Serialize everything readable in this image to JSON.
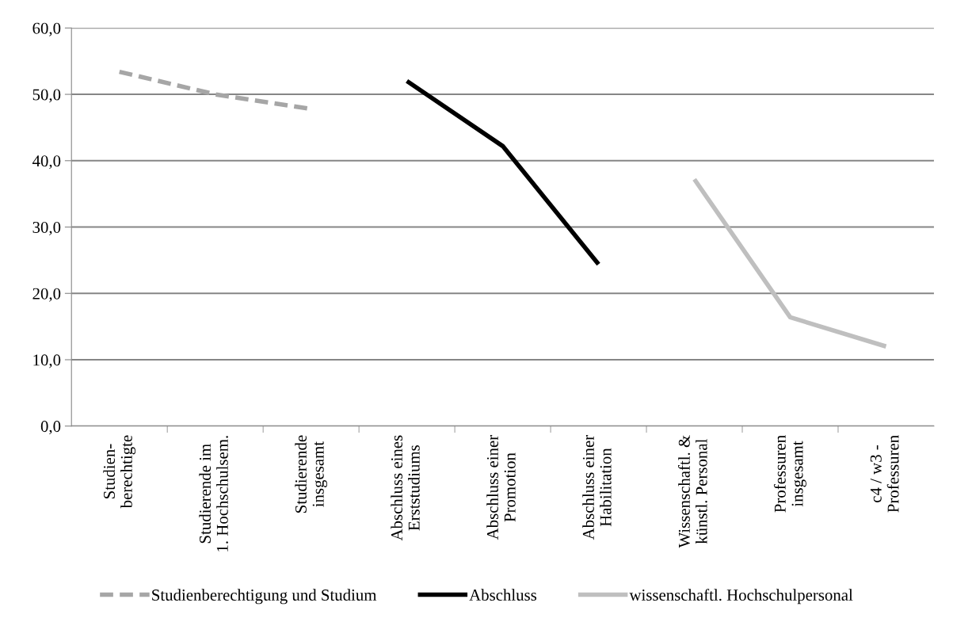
{
  "chart_data": {
    "type": "line",
    "categories": [
      "Studien-\nberechtigte",
      "Studierende im\n1. Hochschulsem.",
      "Studierende\ninsgesamt",
      "Abschluss eines\nErststudiums",
      "Abschluss einer\nPromotion",
      "Abschluss einer\nHabilitation",
      "Wissenschaftl. &\nkünstl. Personal",
      "Professuren\ninsgesamt",
      "c4 / w3 -\nProfessuren"
    ],
    "series": [
      {
        "name": "Studienberechtigung und Studium",
        "color": "#a6a6a6",
        "line_style": "dashed",
        "values": [
          53.4,
          50.0,
          47.8,
          null,
          null,
          null,
          null,
          null,
          null
        ]
      },
      {
        "name": "Abschluss",
        "color": "#000000",
        "line_style": "solid",
        "values": [
          null,
          null,
          null,
          52.0,
          42.2,
          24.4,
          null,
          null,
          null
        ]
      },
      {
        "name": "wissenschaftl. Hochschulpersonal",
        "color": "#bfbfbf",
        "line_style": "solid",
        "values": [
          null,
          null,
          null,
          null,
          null,
          null,
          37.2,
          16.4,
          12.0
        ]
      }
    ],
    "ylim": [
      0,
      60
    ],
    "yticks": [
      {
        "value": 0,
        "label": "0,0"
      },
      {
        "value": 10,
        "label": "10,0"
      },
      {
        "value": 20,
        "label": "20,0"
      },
      {
        "value": 30,
        "label": "30,0"
      },
      {
        "value": 40,
        "label": "40,0"
      },
      {
        "value": 50,
        "label": "50,0"
      },
      {
        "value": 60,
        "label": "60,0"
      }
    ],
    "grid": "y",
    "legend": "bottom",
    "marker": "none"
  }
}
